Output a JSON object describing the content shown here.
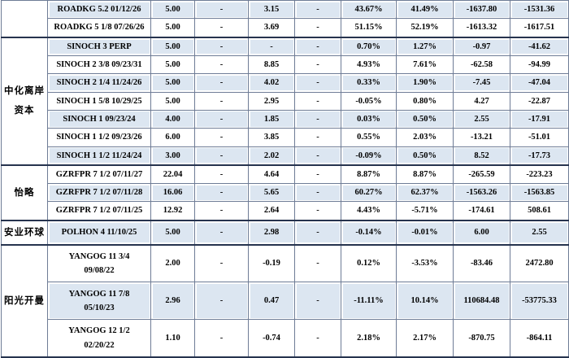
{
  "colors": {
    "row_shade": "#dce6f1",
    "grid_line": "#6e7c96",
    "group_separator": "#26334e",
    "text": "#000000"
  },
  "table": {
    "groups": [
      {
        "label": "",
        "rows": [
          {
            "name": "ROADKG 5.2 01/12/26",
            "values": [
              "5.00",
              "-",
              "3.15",
              "-",
              "43.67%",
              "41.49%",
              "-1637.80",
              "-1531.36"
            ]
          },
          {
            "name": "ROADKG 5 1/8 07/26/26",
            "values": [
              "5.00",
              "-",
              "3.69",
              "-",
              "51.15%",
              "52.19%",
              "-1613.32",
              "-1617.51"
            ]
          }
        ]
      },
      {
        "label": "中化离岸\n资本",
        "rows": [
          {
            "name": "SINOCH 3 PERP",
            "values": [
              "5.00",
              "-",
              "-",
              "-",
              "0.70%",
              "1.27%",
              "-0.97",
              "-41.62"
            ]
          },
          {
            "name": "SINOCH 2 3/8 09/23/31",
            "values": [
              "5.00",
              "-",
              "8.85",
              "-",
              "4.93%",
              "7.61%",
              "-62.58",
              "-94.99"
            ]
          },
          {
            "name": "SINOCH 2 1/4 11/24/26",
            "values": [
              "5.00",
              "-",
              "4.02",
              "-",
              "0.33%",
              "1.90%",
              "-7.45",
              "-47.04"
            ]
          },
          {
            "name": "SINOCH 1 5/8 10/29/25",
            "values": [
              "5.00",
              "-",
              "2.95",
              "-",
              "-0.05%",
              "0.80%",
              "4.27",
              "-22.87"
            ]
          },
          {
            "name": "SINOCH 1 09/23/24",
            "values": [
              "4.00",
              "-",
              "1.85",
              "-",
              "0.03%",
              "0.50%",
              "2.55",
              "-17.91"
            ]
          },
          {
            "name": "SINOCH 1 1/2 09/23/26",
            "values": [
              "6.00",
              "-",
              "3.85",
              "-",
              "0.55%",
              "2.03%",
              "-13.21",
              "-51.01"
            ]
          },
          {
            "name": "SINOCH 1 1/2 11/24/24",
            "values": [
              "3.00",
              "-",
              "2.02",
              "-",
              "-0.09%",
              "0.50%",
              "8.52",
              "-17.73"
            ]
          }
        ]
      },
      {
        "label": "怡略",
        "rows": [
          {
            "name": "GZRFPR 7 1/2 07/11/27",
            "values": [
              "22.04",
              "-",
              "4.64",
              "-",
              "8.87%",
              "8.87%",
              "-265.59",
              "-223.23"
            ]
          },
          {
            "name": "GZRFPR 7 1/2 07/11/28",
            "values": [
              "16.06",
              "-",
              "5.65",
              "-",
              "60.27%",
              "62.37%",
              "-1563.26",
              "-1563.85"
            ]
          },
          {
            "name": "GZRFPR 7 1/2 07/11/25",
            "values": [
              "12.92",
              "-",
              "2.64",
              "-",
              "4.43%",
              "-5.71%",
              "-174.61",
              "508.61"
            ]
          }
        ]
      },
      {
        "label": "安业环球",
        "rows": [
          {
            "name": "POLHON 4 11/10/25",
            "values": [
              "5.00",
              "-",
              "2.98",
              "-",
              "-0.14%",
              "-0.01%",
              "6.00",
              "2.55"
            ]
          }
        ]
      },
      {
        "label": "阳光开曼",
        "rows": [
          {
            "name": "YANGOG 11 3/4\n09/08/22",
            "values": [
              "2.00",
              "-",
              "-0.19",
              "-",
              "0.12%",
              "-3.53%",
              "-83.46",
              "2472.80"
            ]
          },
          {
            "name": "YANGOG 11 7/8\n05/10/23",
            "values": [
              "2.96",
              "-",
              "0.47",
              "-",
              "-11.11%",
              "10.14%",
              "110684.48",
              "-53775.33"
            ]
          },
          {
            "name": "YANGOG 12 1/2\n02/20/22",
            "values": [
              "1.10",
              "-",
              "-0.74",
              "-",
              "2.18%",
              "2.17%",
              "-870.75",
              "-864.11"
            ]
          }
        ]
      }
    ]
  }
}
